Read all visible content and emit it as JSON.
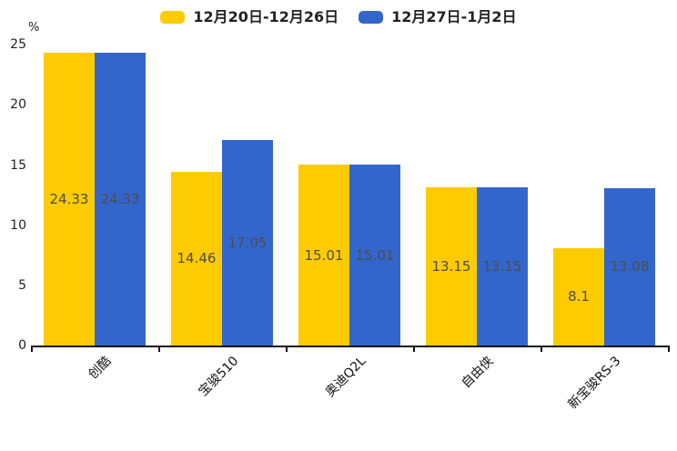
{
  "chart_data": {
    "type": "bar",
    "title": "",
    "categories": [
      "创酷",
      "宝骏510",
      "奥迪Q2L",
      "自由侠",
      "新宝骏RS-3"
    ],
    "series": [
      {
        "name": "12月20日-12月26日",
        "color": "#FDCB02",
        "values": [
          24.33,
          14.46,
          15.01,
          13.15,
          8.1
        ]
      },
      {
        "name": "12月27日-1月2日",
        "color": "#3366CC",
        "values": [
          24.33,
          17.05,
          15.01,
          13.15,
          13.08
        ]
      }
    ],
    "xlabel": "",
    "ylabel": "%",
    "ylim": [
      0,
      25
    ],
    "y_ticks": [
      0,
      5,
      10,
      15,
      20,
      25
    ],
    "grid": false,
    "legend_position": "top",
    "value_labels": "inside-center",
    "value_label_color": "#4d4d4d",
    "axis_color": "#111111"
  }
}
